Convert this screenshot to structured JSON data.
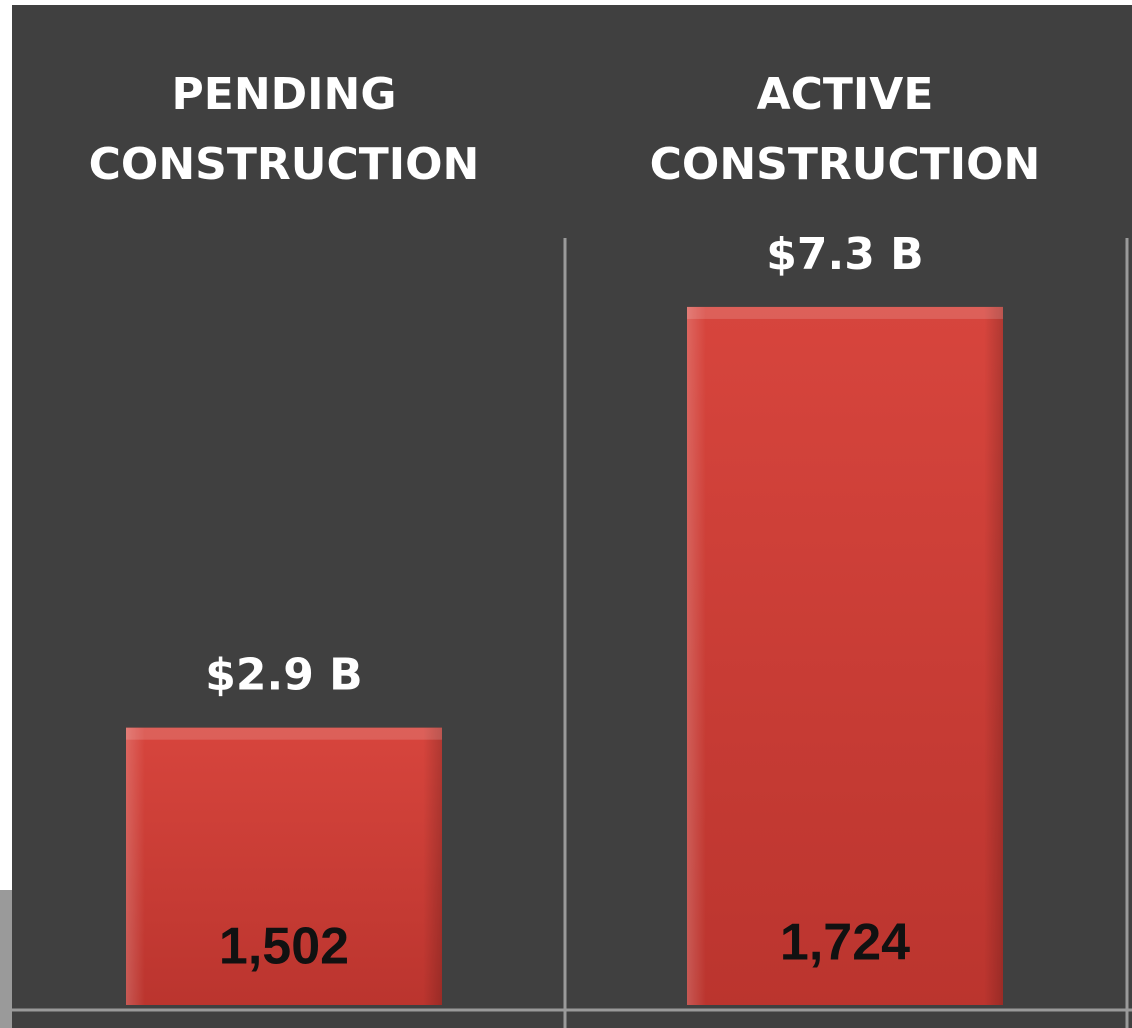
{
  "chart_data": {
    "type": "bar",
    "categories": [
      "PENDING CONSTRUCTION",
      "ACTIVE CONSTRUCTION"
    ],
    "values": [
      2.9,
      7.3
    ],
    "value_labels": [
      "$2.9 B",
      "$7.3 B"
    ],
    "bar_labels": [
      "1,502",
      "1,724"
    ],
    "color": "#d23f37",
    "ylim": [
      0,
      8
    ]
  }
}
